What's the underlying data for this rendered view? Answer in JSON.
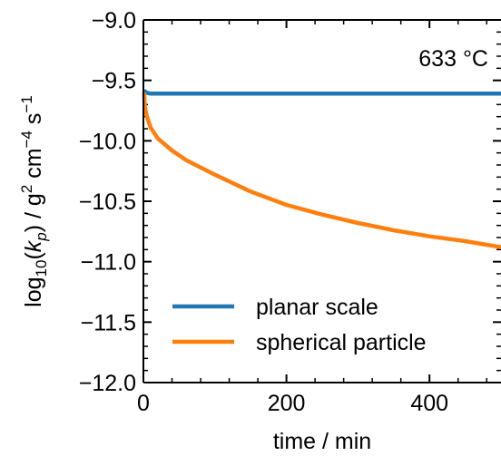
{
  "chart_data": {
    "type": "line",
    "title": "",
    "xlabel": "time / min",
    "ylabel_parts": {
      "log": "log",
      "log_sub": "10",
      "open": "(",
      "k": "k",
      "k_sub": "p",
      "close": ") / g",
      "g_exp": "2",
      "cm": " cm",
      "cm_exp": "−4",
      "s": " s",
      "s_exp": "−1"
    },
    "xlim": [
      0,
      500
    ],
    "ylim": [
      -12.0,
      -9.0
    ],
    "xticks": [
      0,
      200,
      400
    ],
    "xtick_labels": [
      "0",
      "200",
      "400"
    ],
    "yticks": [
      -12.0,
      -11.5,
      -11.0,
      -10.5,
      -10.0,
      -9.5,
      -9.0
    ],
    "ytick_labels": [
      "−12.0",
      "−11.5",
      "−11.0",
      "−10.5",
      "−10.0",
      "−9.5",
      "−9.0"
    ],
    "annotation": "633 °C",
    "grid": false,
    "legend_position": "bottom-left",
    "series": [
      {
        "name": "planar scale",
        "color": "#1f77b4",
        "x": [
          1,
          3,
          10,
          50,
          100,
          200,
          300,
          400,
          500
        ],
        "y": [
          -9.58,
          -9.6,
          -9.61,
          -9.61,
          -9.61,
          -9.61,
          -9.61,
          -9.61,
          -9.61
        ]
      },
      {
        "name": "spherical particle",
        "color": "#ff7f0e",
        "x": [
          1,
          2,
          5,
          10,
          20,
          40,
          60,
          100,
          150,
          200,
          250,
          300,
          350,
          400,
          450,
          500
        ],
        "y": [
          -9.6,
          -9.72,
          -9.8,
          -9.89,
          -9.98,
          -10.08,
          -10.16,
          -10.28,
          -10.42,
          -10.53,
          -10.61,
          -10.68,
          -10.74,
          -10.79,
          -10.83,
          -10.88
        ]
      }
    ]
  }
}
